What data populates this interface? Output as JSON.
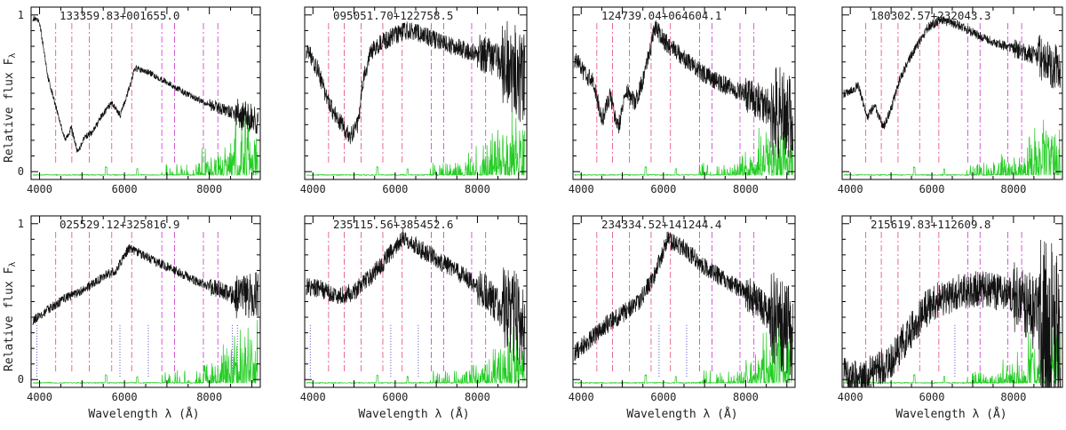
{
  "figure": {
    "ylabel": "Relative flux F",
    "ylabel_sub": "λ",
    "xlabel": "Wavelength λ (Å)"
  },
  "chart_data": [
    {
      "type": "line",
      "title": "133359.83+001655.0",
      "xlim": [
        3800,
        9200
      ],
      "ylim": [
        -0.05,
        1.05
      ],
      "xticks": [
        4000,
        6000,
        8000
      ],
      "yticks": [
        0,
        1
      ],
      "series": [
        {
          "values": [
            [
              3850,
              0.98
            ],
            [
              4000,
              0.95
            ],
            [
              4200,
              0.6
            ],
            [
              4400,
              0.4
            ],
            [
              4600,
              0.2
            ],
            [
              4750,
              0.28
            ],
            [
              4900,
              0.12
            ],
            [
              5050,
              0.22
            ],
            [
              5250,
              0.25
            ],
            [
              5450,
              0.35
            ],
            [
              5700,
              0.44
            ],
            [
              5900,
              0.36
            ],
            [
              6050,
              0.48
            ],
            [
              6250,
              0.66
            ],
            [
              6600,
              0.63
            ],
            [
              7000,
              0.57
            ],
            [
              7500,
              0.49
            ],
            [
              8000,
              0.43
            ],
            [
              8500,
              0.38
            ],
            [
              9100,
              0.33
            ]
          ]
        }
      ],
      "reference_lines": {
        "pink": [
          4380,
          4760,
          5170,
          5700,
          6170
        ],
        "magenta": [
          6880,
          7180,
          7860,
          8200
        ],
        "blue": []
      }
    },
    {
      "type": "line",
      "title": "095051.70+122758.5",
      "xlim": [
        3800,
        9200
      ],
      "ylim": [
        -0.05,
        1.05
      ],
      "xticks": [
        4000,
        6000,
        8000
      ],
      "yticks": [
        0,
        1
      ],
      "series": [
        {
          "values": [
            [
              3850,
              0.78
            ],
            [
              4100,
              0.66
            ],
            [
              4300,
              0.5
            ],
            [
              4500,
              0.38
            ],
            [
              4700,
              0.3
            ],
            [
              4900,
              0.22
            ],
            [
              5100,
              0.3
            ],
            [
              5200,
              0.55
            ],
            [
              5400,
              0.76
            ],
            [
              5700,
              0.83
            ],
            [
              6000,
              0.87
            ],
            [
              6300,
              0.9
            ],
            [
              6800,
              0.86
            ],
            [
              7300,
              0.81
            ],
            [
              7800,
              0.77
            ],
            [
              8300,
              0.74
            ],
            [
              8800,
              0.66
            ],
            [
              9100,
              0.6
            ]
          ]
        }
      ],
      "reference_lines": {
        "pink": [
          4380,
          4760,
          5170,
          5700,
          6170
        ],
        "magenta": [
          6880,
          7180,
          7860,
          8200
        ],
        "blue": []
      }
    },
    {
      "type": "line",
      "title": "124739.04+064604.1",
      "xlim": [
        3800,
        9200
      ],
      "ylim": [
        -0.05,
        1.05
      ],
      "xticks": [
        4000,
        6000,
        8000
      ],
      "yticks": [
        0,
        1
      ],
      "series": [
        {
          "values": [
            [
              3850,
              0.72
            ],
            [
              4100,
              0.62
            ],
            [
              4300,
              0.58
            ],
            [
              4500,
              0.32
            ],
            [
              4700,
              0.48
            ],
            [
              4900,
              0.28
            ],
            [
              5100,
              0.52
            ],
            [
              5300,
              0.44
            ],
            [
              5500,
              0.58
            ],
            [
              5800,
              0.92
            ],
            [
              6000,
              0.84
            ],
            [
              6400,
              0.74
            ],
            [
              7000,
              0.62
            ],
            [
              7500,
              0.55
            ],
            [
              8000,
              0.5
            ],
            [
              8500,
              0.42
            ],
            [
              9000,
              0.36
            ],
            [
              9100,
              0.3
            ]
          ]
        }
      ],
      "reference_lines": {
        "pink": [
          4380,
          4760,
          5170,
          5700,
          6170
        ],
        "magenta": [
          6880,
          7180,
          7860,
          8200
        ],
        "blue": []
      }
    },
    {
      "type": "line",
      "title": "180302.57+232043.3",
      "xlim": [
        3800,
        9200
      ],
      "ylim": [
        -0.05,
        1.05
      ],
      "xticks": [
        4000,
        6000,
        8000
      ],
      "yticks": [
        0,
        1
      ],
      "series": [
        {
          "values": [
            [
              3850,
              0.5
            ],
            [
              4200,
              0.55
            ],
            [
              4400,
              0.35
            ],
            [
              4600,
              0.42
            ],
            [
              4800,
              0.28
            ],
            [
              5000,
              0.4
            ],
            [
              5200,
              0.58
            ],
            [
              5450,
              0.72
            ],
            [
              5700,
              0.83
            ],
            [
              5900,
              0.92
            ],
            [
              6200,
              0.97
            ],
            [
              6700,
              0.93
            ],
            [
              7200,
              0.86
            ],
            [
              7700,
              0.81
            ],
            [
              8200,
              0.77
            ],
            [
              8700,
              0.72
            ],
            [
              9100,
              0.66
            ]
          ]
        }
      ],
      "reference_lines": {
        "pink": [
          4380,
          4760,
          5170,
          5700,
          6170
        ],
        "magenta": [
          6880,
          7180,
          7860,
          8200
        ],
        "blue": []
      }
    },
    {
      "type": "line",
      "title": "025529.12+325816.9",
      "xlim": [
        3800,
        9200
      ],
      "ylim": [
        -0.05,
        1.05
      ],
      "xticks": [
        4000,
        6000,
        8000
      ],
      "yticks": [
        0,
        1
      ],
      "series": [
        {
          "values": [
            [
              3850,
              0.38
            ],
            [
              4200,
              0.45
            ],
            [
              4600,
              0.52
            ],
            [
              5000,
              0.57
            ],
            [
              5500,
              0.66
            ],
            [
              5800,
              0.7
            ],
            [
              6100,
              0.84
            ],
            [
              6300,
              0.82
            ],
            [
              6700,
              0.76
            ],
            [
              7200,
              0.7
            ],
            [
              7700,
              0.63
            ],
            [
              8200,
              0.58
            ],
            [
              8700,
              0.52
            ],
            [
              9100,
              0.55
            ]
          ]
        }
      ],
      "reference_lines": {
        "pink": [
          4380,
          4760,
          5170,
          5700,
          6170
        ],
        "magenta": [
          6880,
          7180,
          7860,
          8200
        ],
        "blue": [
          3935,
          5893,
          6563,
          8542,
          8662
        ]
      }
    },
    {
      "type": "line",
      "title": "235115.56+385452.6",
      "xlim": [
        3800,
        9200
      ],
      "ylim": [
        -0.05,
        1.05
      ],
      "xticks": [
        4000,
        6000,
        8000
      ],
      "yticks": [
        0,
        1
      ],
      "series": [
        {
          "values": [
            [
              3850,
              0.6
            ],
            [
              4200,
              0.58
            ],
            [
              4600,
              0.54
            ],
            [
              5000,
              0.56
            ],
            [
              5400,
              0.66
            ],
            [
              5800,
              0.78
            ],
            [
              6200,
              0.92
            ],
            [
              6600,
              0.84
            ],
            [
              7200,
              0.74
            ],
            [
              7700,
              0.66
            ],
            [
              8200,
              0.56
            ],
            [
              8600,
              0.44
            ],
            [
              9000,
              0.4
            ],
            [
              9100,
              0.35
            ]
          ]
        }
      ],
      "reference_lines": {
        "pink": [
          4380,
          4760,
          5170,
          5700,
          6170
        ],
        "magenta": [
          6880,
          7180,
          7860,
          8200
        ],
        "blue": [
          3935,
          5893,
          6563
        ]
      }
    },
    {
      "type": "line",
      "title": "234334.52+141244.4",
      "xlim": [
        3800,
        9200
      ],
      "ylim": [
        -0.05,
        1.05
      ],
      "xticks": [
        4000,
        6000,
        8000
      ],
      "yticks": [
        0,
        1
      ],
      "series": [
        {
          "values": [
            [
              3850,
              0.18
            ],
            [
              4200,
              0.25
            ],
            [
              4600,
              0.35
            ],
            [
              5000,
              0.42
            ],
            [
              5400,
              0.5
            ],
            [
              5800,
              0.68
            ],
            [
              6100,
              0.9
            ],
            [
              6500,
              0.84
            ],
            [
              7000,
              0.72
            ],
            [
              7500,
              0.64
            ],
            [
              8000,
              0.56
            ],
            [
              8400,
              0.46
            ],
            [
              8800,
              0.36
            ],
            [
              9100,
              0.3
            ]
          ]
        }
      ],
      "reference_lines": {
        "pink": [
          4380,
          4760,
          5170,
          5700,
          6170
        ],
        "magenta": [
          6880,
          7180,
          7860,
          8200
        ],
        "blue": [
          5893,
          6563
        ]
      }
    },
    {
      "type": "line",
      "title": "215619.83+112609.8",
      "xlim": [
        3800,
        9200
      ],
      "ylim": [
        -0.05,
        1.05
      ],
      "xticks": [
        4000,
        6000,
        8000
      ],
      "yticks": [
        0,
        1
      ],
      "series": [
        {
          "values": [
            [
              3850,
              0.02
            ],
            [
              4200,
              0.0
            ],
            [
              4600,
              0.05
            ],
            [
              5000,
              0.12
            ],
            [
              5400,
              0.28
            ],
            [
              5800,
              0.44
            ],
            [
              6200,
              0.52
            ],
            [
              6700,
              0.56
            ],
            [
              7200,
              0.58
            ],
            [
              7700,
              0.56
            ],
            [
              8200,
              0.5
            ],
            [
              8700,
              0.38
            ],
            [
              9100,
              0.3
            ]
          ]
        }
      ],
      "reference_lines": {
        "pink": [
          4380,
          4760,
          5170,
          5700,
          6170
        ],
        "magenta": [
          6880,
          7180,
          7860,
          8200
        ],
        "blue": [
          6563
        ]
      }
    }
  ]
}
